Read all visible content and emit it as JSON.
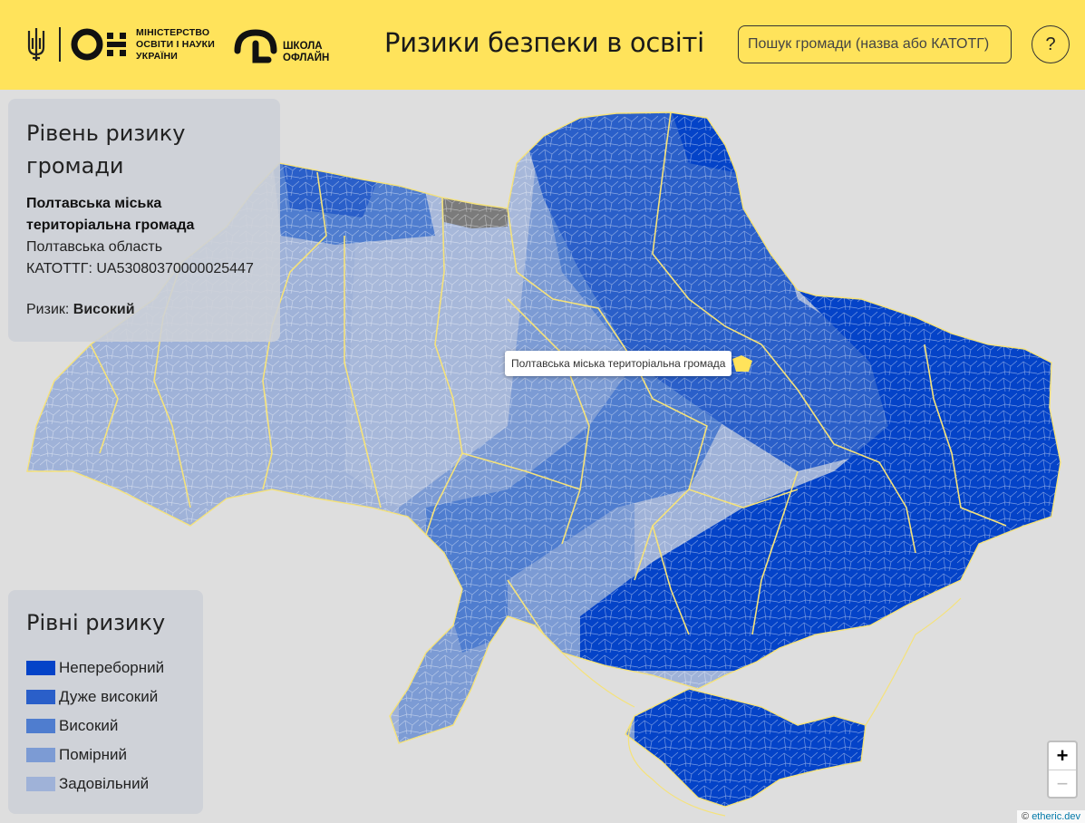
{
  "header": {
    "ministry_lines": [
      "МІНІСТЕРСТВО",
      "ОСВІТИ І НАУКИ",
      "УКРАЇНИ"
    ],
    "school_lines": [
      "ШКОЛА",
      "ОФЛАЙН"
    ],
    "title": "Ризики безпеки в освіті",
    "search_placeholder": "Пошук громади (назва або КАТОТГ)",
    "help_label": "?"
  },
  "info_panel": {
    "title": "Рівень ризику громади",
    "community_name": "Полтавська міська територіальна громада",
    "oblast": "Полтавська область",
    "katottg": "КАТОТТГ: UA53080370000025447",
    "risk_label": "Ризик:",
    "risk_value": "Високий"
  },
  "legend": {
    "title": "Рівні ризику",
    "items": [
      {
        "label": "Непереборний",
        "color": "#0443c8"
      },
      {
        "label": "Дуже високий",
        "color": "#2a5fc9"
      },
      {
        "label": "Високий",
        "color": "#4f7dcf"
      },
      {
        "label": "Помірний",
        "color": "#7c9bd4"
      },
      {
        "label": "Задовільний",
        "color": "#9fb2d8"
      }
    ]
  },
  "map": {
    "tooltip": "Полтавська міська територіальна громада",
    "highlight_color": "#ffe35b",
    "no_data_color": "#7b7b7b",
    "border_color": "#f5e27a"
  },
  "zoom": {
    "in": "+",
    "out": "−"
  },
  "attribution": {
    "prefix": "© ",
    "link": "etheric.dev"
  }
}
